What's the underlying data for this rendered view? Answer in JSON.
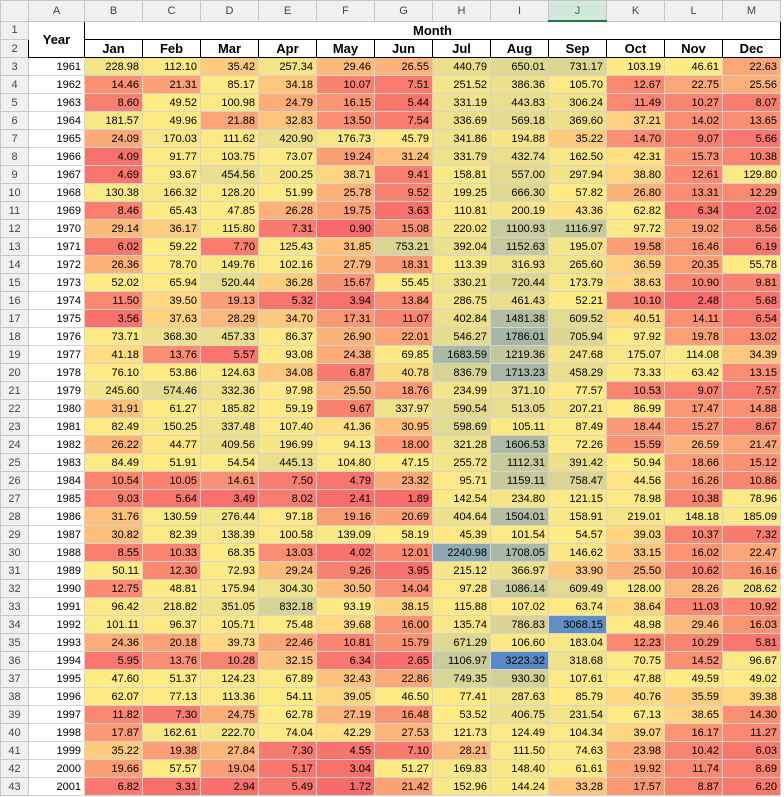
{
  "column_letters": [
    "A",
    "B",
    "C",
    "D",
    "E",
    "F",
    "G",
    "H",
    "I",
    "J",
    "K",
    "L",
    "M"
  ],
  "row_numbers": [
    1,
    2,
    3,
    4,
    5,
    6,
    7,
    8,
    9,
    10,
    11,
    12,
    13,
    14,
    15,
    16,
    17,
    18,
    19,
    20,
    21,
    22,
    23,
    24,
    25,
    26,
    27,
    28,
    29,
    30,
    31,
    32,
    33,
    34,
    35,
    36,
    37,
    38,
    39,
    40,
    41,
    42,
    43
  ],
  "header": {
    "year": "Year",
    "month": "Month",
    "months": [
      "Jan",
      "Feb",
      "Mar",
      "Apr",
      "May",
      "Jun",
      "Jul",
      "Aug",
      "Sep",
      "Oct",
      "Nov",
      "Dec"
    ]
  },
  "color_scale": {
    "min": "#F8696B",
    "mid": "#FFEB84",
    "max": "#5A8AC6"
  },
  "table": {
    "rows": [
      [
        "1961",
        "228.98",
        "112.10",
        "35.42",
        "257.34",
        "29.46",
        "26.55",
        "440.79",
        "650.01",
        "731.17",
        "103.19",
        "46.61",
        "22.63"
      ],
      [
        "1962",
        "14.46",
        "21.31",
        "85.17",
        "34.18",
        "10.07",
        "7.51",
        "251.52",
        "386.36",
        "105.70",
        "12.67",
        "22.75",
        "25.56"
      ],
      [
        "1963",
        "8.60",
        "49.52",
        "100.98",
        "24.79",
        "16.15",
        "5.44",
        "331.19",
        "443.83",
        "306.24",
        "11.49",
        "10.27",
        "8.07"
      ],
      [
        "1964",
        "181.57",
        "49.96",
        "21.88",
        "32.83",
        "13.50",
        "7.54",
        "336.69",
        "569.18",
        "369.60",
        "37.21",
        "14.02",
        "13.65"
      ],
      [
        "1965",
        "24.09",
        "170.03",
        "111.62",
        "420.90",
        "176.73",
        "45.79",
        "341.86",
        "194.88",
        "35.22",
        "14.70",
        "9.07",
        "5.66"
      ],
      [
        "1966",
        "4.09",
        "91.77",
        "103.75",
        "73.07",
        "19.24",
        "31.24",
        "331.79",
        "432.74",
        "162.50",
        "42.31",
        "15.73",
        "10.38"
      ],
      [
        "1967",
        "4.69",
        "93.67",
        "454.56",
        "200.25",
        "38.71",
        "9.41",
        "158.81",
        "557.00",
        "297.94",
        "38.80",
        "12.61",
        "129.80"
      ],
      [
        "1968",
        "130.38",
        "166.32",
        "128.20",
        "51.99",
        "25.78",
        "9.52",
        "199.25",
        "666.30",
        "57.82",
        "26.80",
        "13.31",
        "12.29"
      ],
      [
        "1969",
        "8.46",
        "65.43",
        "47.85",
        "26.28",
        "19.75",
        "3.63",
        "110.81",
        "200.19",
        "43.36",
        "62.82",
        "6.34",
        "2.02"
      ],
      [
        "1970",
        "29.14",
        "36.17",
        "115.80",
        "7.31",
        "0.90",
        "15.08",
        "220.02",
        "1100.93",
        "1116.97",
        "97.72",
        "19.02",
        "8.56"
      ],
      [
        "1971",
        "6.02",
        "59.22",
        "7.70",
        "125.43",
        "31.85",
        "753.21",
        "392.04",
        "1152.63",
        "195.07",
        "19.58",
        "16.46",
        "6.19"
      ],
      [
        "1972",
        "26.36",
        "78.70",
        "149.76",
        "102.16",
        "27.79",
        "18.31",
        "113.39",
        "316.93",
        "265.60",
        "36.59",
        "20.35",
        "55.78"
      ],
      [
        "1973",
        "52.02",
        "65.94",
        "520.44",
        "36.28",
        "15.67",
        "55.45",
        "330.21",
        "720.44",
        "173.79",
        "38.63",
        "10.90",
        "9.81"
      ],
      [
        "1974",
        "11.50",
        "39.50",
        "19.13",
        "5.32",
        "3.94",
        "13.84",
        "286.75",
        "461.43",
        "52.21",
        "10.10",
        "2.48",
        "5.68"
      ],
      [
        "1975",
        "3.56",
        "37.63",
        "28.29",
        "34.70",
        "17.31",
        "11.07",
        "402.84",
        "1481.38",
        "609.52",
        "40.51",
        "14.11",
        "6.54"
      ],
      [
        "1976",
        "73.71",
        "368.30",
        "457.33",
        "86.37",
        "26.90",
        "22.01",
        "546.27",
        "1786.01",
        "705.94",
        "97.92",
        "19.78",
        "13.02"
      ],
      [
        "1977",
        "41.18",
        "13.76",
        "5.57",
        "93.08",
        "24.38",
        "69.85",
        "1683.59",
        "1219.36",
        "247.68",
        "175.07",
        "114.08",
        "34.39"
      ],
      [
        "1978",
        "76.10",
        "53.86",
        "124.63",
        "34.08",
        "6.87",
        "40.78",
        "836.79",
        "1713.23",
        "458.29",
        "73.33",
        "63.42",
        "13.15"
      ],
      [
        "1979",
        "245.60",
        "574.46",
        "332.36",
        "97.98",
        "25.50",
        "18.76",
        "234.99",
        "371.10",
        "77.57",
        "10.53",
        "9.07",
        "7.57"
      ],
      [
        "1980",
        "31.91",
        "61.27",
        "185.82",
        "59.19",
        "9.67",
        "337.97",
        "590.54",
        "513.05",
        "207.21",
        "86.99",
        "17.47",
        "14.88"
      ],
      [
        "1981",
        "82.49",
        "150.25",
        "337.48",
        "107.40",
        "41.36",
        "30.95",
        "598.69",
        "105.11",
        "87.49",
        "18.44",
        "15.27",
        "8.67"
      ],
      [
        "1982",
        "26.22",
        "44.77",
        "409.56",
        "196.99",
        "94.13",
        "18.00",
        "321.28",
        "1606.53",
        "72.26",
        "15.59",
        "26.59",
        "21.47"
      ],
      [
        "1983",
        "84.49",
        "51.91",
        "54.54",
        "445.13",
        "104.80",
        "47.15",
        "255.72",
        "1112.31",
        "391.42",
        "50.94",
        "18.66",
        "15.12"
      ],
      [
        "1984",
        "10.54",
        "10.05",
        "14.61",
        "7.50",
        "4.79",
        "23.32",
        "95.71",
        "1159.11",
        "758.47",
        "44.56",
        "16.26",
        "10.86"
      ],
      [
        "1985",
        "9.03",
        "5.64",
        "3.49",
        "8.02",
        "2.41",
        "1.89",
        "142.54",
        "234.80",
        "121.15",
        "78.98",
        "10.38",
        "78.96"
      ],
      [
        "1986",
        "31.76",
        "130.59",
        "276.44",
        "97.18",
        "19.16",
        "20.69",
        "404.64",
        "1504.01",
        "158.91",
        "219.01",
        "148.18",
        "185.09"
      ],
      [
        "1987",
        "30.82",
        "82.39",
        "138.39",
        "100.58",
        "139.09",
        "58.19",
        "45.39",
        "101.54",
        "54.57",
        "39.03",
        "10.37",
        "7.32"
      ],
      [
        "1988",
        "8.55",
        "10.33",
        "68.35",
        "13.03",
        "4.02",
        "12.01",
        "2240.98",
        "1708.05",
        "146.62",
        "33.15",
        "16.02",
        "22.47"
      ],
      [
        "1989",
        "50.11",
        "12.30",
        "72.93",
        "29.24",
        "9.26",
        "3.95",
        "215.12",
        "366.97",
        "33.90",
        "25.50",
        "10.62",
        "16.16"
      ],
      [
        "1990",
        "12.75",
        "48.81",
        "175.94",
        "304.30",
        "30.50",
        "14.04",
        "97.28",
        "1086.14",
        "609.49",
        "128.00",
        "28.26",
        "208.62"
      ],
      [
        "1991",
        "96.42",
        "218.82",
        "351.05",
        "832.18",
        "93.19",
        "38.15",
        "115.88",
        "107.02",
        "63.74",
        "38.64",
        "11.03",
        "10.92"
      ],
      [
        "1992",
        "101.11",
        "96.37",
        "105.71",
        "75.48",
        "39.68",
        "16.00",
        "135.74",
        "786.83",
        "3068.15",
        "48.98",
        "29.46",
        "16.03"
      ],
      [
        "1993",
        "24.36",
        "20.18",
        "39.73",
        "22.46",
        "10.81",
        "15.79",
        "671.29",
        "106.60",
        "183.04",
        "12.23",
        "10.29",
        "5.81"
      ],
      [
        "1994",
        "5.95",
        "13.76",
        "10.28",
        "32.15",
        "6.34",
        "2.65",
        "1106.97",
        "3223.32",
        "318.68",
        "70.75",
        "14.52",
        "96.67"
      ],
      [
        "1995",
        "47.60",
        "51.37",
        "124.23",
        "67.89",
        "32.43",
        "22.86",
        "749.35",
        "930.30",
        "107.61",
        "47.88",
        "49.59",
        "49.02"
      ],
      [
        "1996",
        "62.07",
        "77.13",
        "113.36",
        "54.11",
        "39.05",
        "46.50",
        "77.41",
        "287.63",
        "85.79",
        "40.76",
        "35.59",
        "39.38"
      ],
      [
        "1997",
        "11.82",
        "7.30",
        "24.75",
        "62.78",
        "27.19",
        "16.48",
        "53.52",
        "406.75",
        "231.54",
        "67.13",
        "38.65",
        "14.30"
      ],
      [
        "1998",
        "17.87",
        "162.61",
        "222.70",
        "74.04",
        "42.29",
        "27.53",
        "121.73",
        "124.49",
        "104.34",
        "39.07",
        "16.17",
        "11.27"
      ],
      [
        "1999",
        "35.22",
        "19.38",
        "27.84",
        "7.30",
        "4.55",
        "7.10",
        "28.21",
        "111.50",
        "74.63",
        "23.98",
        "10.42",
        "6.03"
      ],
      [
        "2000",
        "19.66",
        "57.57",
        "19.04",
        "5.17",
        "3.04",
        "51.27",
        "169.83",
        "148.40",
        "61.61",
        "19.92",
        "11.74",
        "8.69"
      ],
      [
        "2001",
        "6.82",
        "3.31",
        "2.94",
        "5.49",
        "1.72",
        "21.42",
        "152.96",
        "144.24",
        "33.28",
        "17.57",
        "8.87",
        "6.20"
      ]
    ]
  }
}
